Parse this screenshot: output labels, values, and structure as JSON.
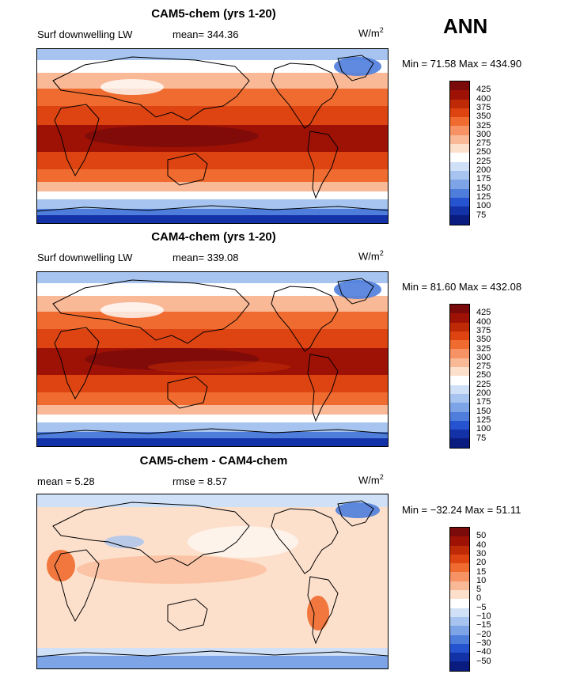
{
  "header": {
    "season": "ANN"
  },
  "panels": [
    {
      "title": "CAM5-chem (yrs 1-20)",
      "variable": "Surf downwelling LW",
      "stat1": "mean= 344.36",
      "stat2": "",
      "units_base": "W/m",
      "units_exp": "2",
      "minmax": "Min =  71.58 Max = 434.90",
      "colorbar": {
        "labels": [
          "425",
          "400",
          "375",
          "350",
          "325",
          "300",
          "275",
          "250",
          "225",
          "200",
          "175",
          "150",
          "125",
          "100",
          "75"
        ],
        "colors": [
          "#7b0a0a",
          "#9e1205",
          "#bf2a06",
          "#dd4412",
          "#f06b2f",
          "#f69263",
          "#f9b896",
          "#fde0cc",
          "#ffffff",
          "#cfe0f7",
          "#a6c4ef",
          "#7ca4e6",
          "#4e7ddc",
          "#2653d0",
          "#1432a8",
          "#0a1c80"
        ]
      }
    },
    {
      "title": "CAM4-chem (yrs 1-20)",
      "variable": "Surf downwelling LW",
      "stat1": "mean= 339.08",
      "stat2": "",
      "units_base": "W/m",
      "units_exp": "2",
      "minmax": "Min =  81.60 Max = 432.08",
      "colorbar": {
        "labels": [
          "425",
          "400",
          "375",
          "350",
          "325",
          "300",
          "275",
          "250",
          "225",
          "200",
          "175",
          "150",
          "125",
          "100",
          "75"
        ],
        "colors": [
          "#7b0a0a",
          "#9e1205",
          "#bf2a06",
          "#dd4412",
          "#f06b2f",
          "#f69263",
          "#f9b896",
          "#fde0cc",
          "#ffffff",
          "#cfe0f7",
          "#a6c4ef",
          "#7ca4e6",
          "#4e7ddc",
          "#2653d0",
          "#1432a8",
          "#0a1c80"
        ]
      }
    },
    {
      "title": "CAM5-chem - CAM4-chem",
      "variable": "",
      "stat1": "mean =    5.28",
      "stat2": "rmse =    8.57",
      "units_base": "W/m",
      "units_exp": "2",
      "minmax": "Min = −32.24 Max =  51.11",
      "colorbar": {
        "labels": [
          "50",
          "40",
          "30",
          "20",
          "15",
          "10",
          "5",
          "0",
          "−5",
          "−10",
          "−15",
          "−20",
          "−30",
          "−40",
          "−50"
        ],
        "colors": [
          "#7b0a0a",
          "#9e1205",
          "#bf2a06",
          "#dd4412",
          "#f06b2f",
          "#f69263",
          "#f9b896",
          "#fde0cc",
          "#ffffff",
          "#cfe0f7",
          "#a6c4ef",
          "#7ca4e6",
          "#4e7ddc",
          "#2653d0",
          "#1432a8",
          "#0a1c80"
        ]
      }
    }
  ],
  "chart_data": [
    {
      "type": "heatmap",
      "title": "CAM5-chem (yrs 1-20)",
      "variable": "Surf downwelling LW",
      "units": "W/m2",
      "mean": 344.36,
      "min": 71.58,
      "max": 434.9,
      "contour_levels": [
        75,
        100,
        125,
        150,
        175,
        200,
        225,
        250,
        275,
        300,
        325,
        350,
        375,
        400,
        425
      ]
    },
    {
      "type": "heatmap",
      "title": "CAM4-chem (yrs 1-20)",
      "variable": "Surf downwelling LW",
      "units": "W/m2",
      "mean": 339.08,
      "min": 81.6,
      "max": 432.08,
      "contour_levels": [
        75,
        100,
        125,
        150,
        175,
        200,
        225,
        250,
        275,
        300,
        325,
        350,
        375,
        400,
        425
      ]
    },
    {
      "type": "heatmap",
      "title": "CAM5-chem - CAM4-chem",
      "units": "W/m2",
      "mean": 5.28,
      "rmse": 8.57,
      "min": -32.24,
      "max": 51.11,
      "contour_levels": [
        -50,
        -40,
        -30,
        -20,
        -15,
        -10,
        -5,
        0,
        5,
        10,
        15,
        20,
        30,
        40,
        50
      ]
    }
  ]
}
